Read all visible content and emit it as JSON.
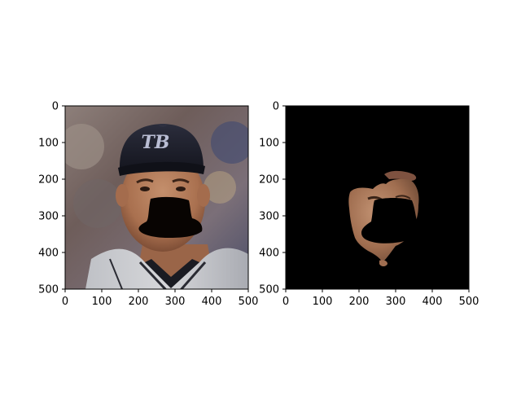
{
  "chart_data": [
    {
      "type": "image",
      "content": "photo of a smiling man wearing a dark baseball cap with a 'TB' logo and a grey jersey; lower face masked by a black shape",
      "cap_logo_text": "TB",
      "x_ticks": [
        "0",
        "100",
        "200",
        "300",
        "400",
        "500"
      ],
      "y_ticks": [
        "0",
        "100",
        "200",
        "300",
        "400",
        "500"
      ],
      "xlim": [
        0,
        500
      ],
      "ylim": [
        500,
        0
      ],
      "colors": {
        "cap": "#1c1d28",
        "skin": "#b07a58",
        "jersey": "#c9cacd",
        "mask": "#080402"
      }
    },
    {
      "type": "image",
      "content": "segmentation of the face region on a black background; lower face masked by a black shape",
      "x_ticks": [
        "0",
        "100",
        "200",
        "300",
        "400",
        "500"
      ],
      "y_ticks": [
        "0",
        "100",
        "200",
        "300",
        "400",
        "500"
      ],
      "xlim": [
        0,
        500
      ],
      "ylim": [
        500,
        0
      ],
      "colors": {
        "background": "#000000",
        "skin": "#a8785a"
      }
    }
  ]
}
